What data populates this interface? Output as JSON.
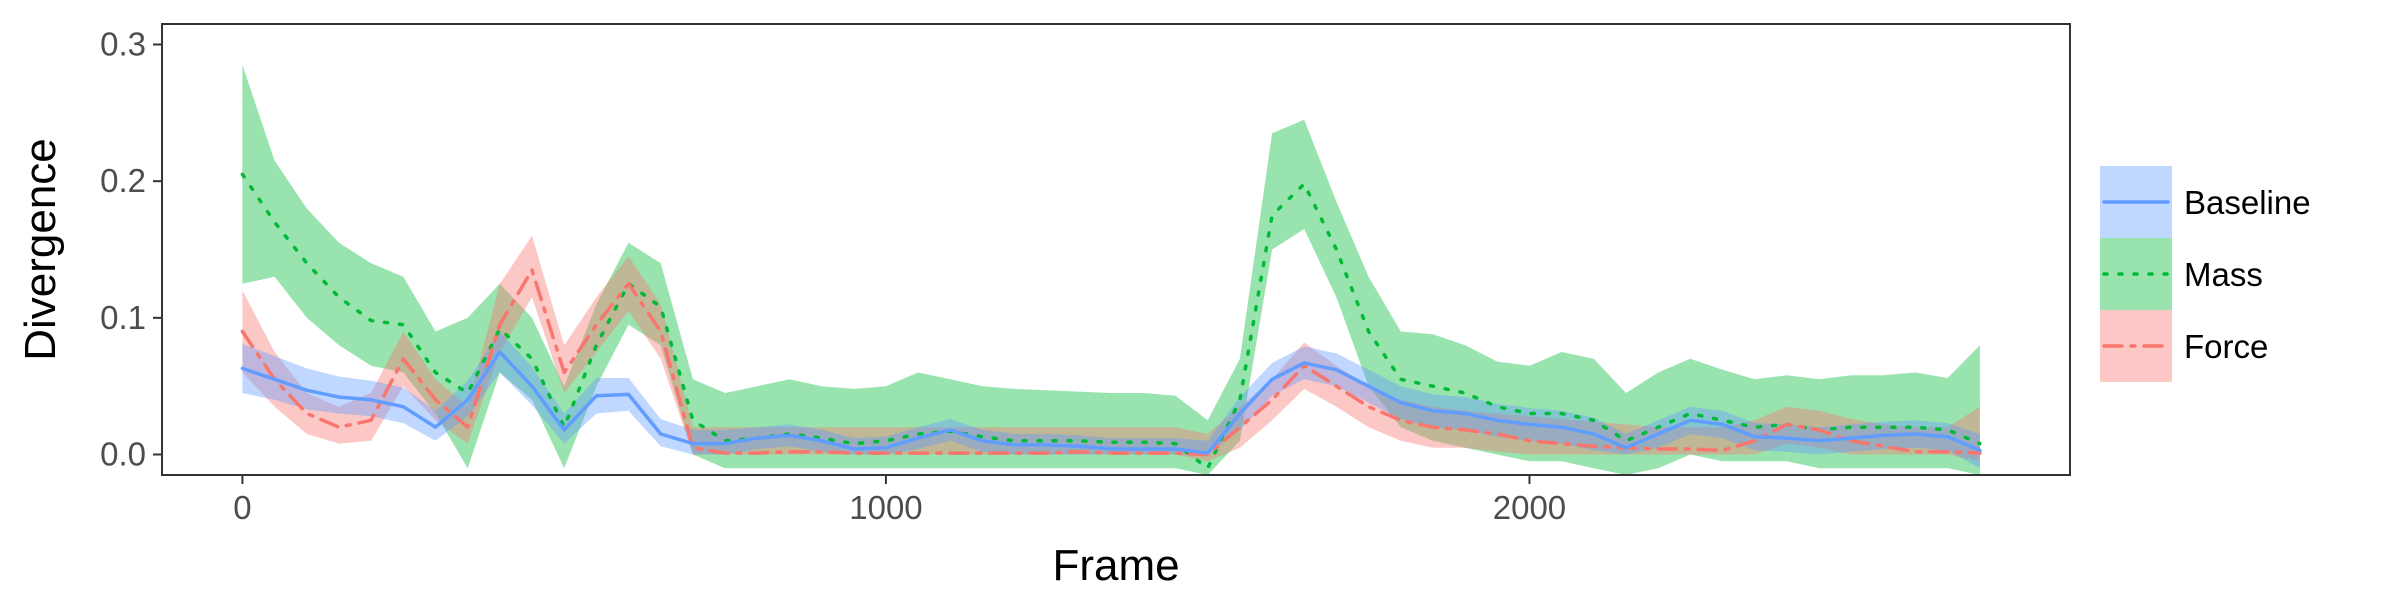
{
  "chart_data": {
    "type": "line",
    "title": "",
    "xlabel": "Frame",
    "ylabel": "Divergence",
    "xlim": [
      -125,
      2840
    ],
    "ylim": [
      -0.015,
      0.315
    ],
    "xticks": [
      0,
      1000,
      2000
    ],
    "xtick_labels": [
      "0",
      "1000",
      "2000"
    ],
    "yticks": [
      0.0,
      0.1,
      0.2,
      0.3
    ],
    "ytick_labels": [
      "0.0",
      "0.1",
      "0.2",
      "0.3"
    ],
    "grid": false,
    "legend_position": "right",
    "x": [
      0,
      50,
      100,
      150,
      200,
      250,
      300,
      350,
      400,
      450,
      500,
      550,
      600,
      650,
      700,
      750,
      800,
      850,
      900,
      950,
      1000,
      1050,
      1100,
      1150,
      1200,
      1250,
      1300,
      1350,
      1400,
      1450,
      1500,
      1550,
      1600,
      1650,
      1700,
      1750,
      1800,
      1850,
      1900,
      1950,
      2000,
      2050,
      2100,
      2150,
      2200,
      2250,
      2300,
      2350,
      2400,
      2450,
      2500,
      2550,
      2600,
      2650,
      2700
    ],
    "series": [
      {
        "name": "Baseline",
        "color": "#619CFF",
        "band_color": "#619CFF",
        "line_style": "solid",
        "values": [
          0.063,
          0.055,
          0.047,
          0.042,
          0.04,
          0.035,
          0.02,
          0.04,
          0.075,
          0.05,
          0.018,
          0.043,
          0.044,
          0.015,
          0.008,
          0.008,
          0.012,
          0.014,
          0.01,
          0.004,
          0.005,
          0.012,
          0.018,
          0.01,
          0.007,
          0.007,
          0.006,
          0.004,
          0.004,
          0.004,
          0.001,
          0.03,
          0.055,
          0.067,
          0.062,
          0.05,
          0.038,
          0.032,
          0.03,
          0.025,
          0.022,
          0.02,
          0.015,
          0.005,
          0.015,
          0.025,
          0.022,
          0.013,
          0.012,
          0.01,
          0.012,
          0.014,
          0.015,
          0.013,
          0.003
        ],
        "lower": [
          0.045,
          0.04,
          0.033,
          0.03,
          0.028,
          0.023,
          0.01,
          0.028,
          0.06,
          0.036,
          0.008,
          0.03,
          0.032,
          0.006,
          0.0,
          0.0,
          0.004,
          0.006,
          0.002,
          0.0,
          0.0,
          0.004,
          0.01,
          0.002,
          0.0,
          0.0,
          0.0,
          0.0,
          0.0,
          0.0,
          0.0,
          0.018,
          0.043,
          0.055,
          0.05,
          0.038,
          0.026,
          0.02,
          0.018,
          0.013,
          0.01,
          0.008,
          0.003,
          0.0,
          0.005,
          0.015,
          0.012,
          0.003,
          0.002,
          0.0,
          0.002,
          0.004,
          0.005,
          0.003,
          -0.01
        ],
        "upper": [
          0.081,
          0.072,
          0.063,
          0.057,
          0.054,
          0.049,
          0.032,
          0.054,
          0.09,
          0.064,
          0.03,
          0.056,
          0.056,
          0.026,
          0.018,
          0.018,
          0.02,
          0.022,
          0.018,
          0.012,
          0.013,
          0.02,
          0.026,
          0.018,
          0.015,
          0.015,
          0.014,
          0.012,
          0.012,
          0.012,
          0.01,
          0.042,
          0.067,
          0.079,
          0.074,
          0.062,
          0.05,
          0.044,
          0.042,
          0.037,
          0.034,
          0.032,
          0.027,
          0.015,
          0.025,
          0.035,
          0.032,
          0.023,
          0.022,
          0.02,
          0.022,
          0.024,
          0.025,
          0.023,
          0.015
        ]
      },
      {
        "name": "Mass",
        "color": "#00BA38",
        "band_color": "#00BA38",
        "line_style": "dotted",
        "values": [
          0.205,
          0.17,
          0.14,
          0.115,
          0.098,
          0.095,
          0.06,
          0.045,
          0.092,
          0.07,
          0.02,
          0.08,
          0.125,
          0.108,
          0.025,
          0.01,
          0.012,
          0.015,
          0.012,
          0.008,
          0.01,
          0.015,
          0.017,
          0.013,
          0.01,
          0.01,
          0.01,
          0.009,
          0.009,
          0.008,
          -0.01,
          0.04,
          0.175,
          0.198,
          0.15,
          0.09,
          0.055,
          0.05,
          0.045,
          0.035,
          0.03,
          0.03,
          0.025,
          0.01,
          0.02,
          0.03,
          0.025,
          0.02,
          0.022,
          0.018,
          0.02,
          0.02,
          0.02,
          0.018,
          0.008
        ],
        "lower": [
          0.125,
          0.13,
          0.1,
          0.08,
          0.065,
          0.06,
          0.03,
          -0.01,
          0.06,
          0.04,
          -0.01,
          0.05,
          0.095,
          0.08,
          0.0,
          -0.01,
          -0.01,
          -0.01,
          -0.01,
          -0.01,
          -0.01,
          -0.01,
          -0.01,
          -0.01,
          -0.01,
          -0.01,
          -0.01,
          -0.01,
          -0.01,
          -0.01,
          -0.015,
          0.01,
          0.15,
          0.165,
          0.115,
          0.05,
          0.02,
          0.01,
          0.005,
          0.0,
          -0.005,
          -0.005,
          -0.01,
          -0.015,
          -0.01,
          0.0,
          -0.005,
          -0.005,
          -0.005,
          -0.01,
          -0.01,
          -0.01,
          -0.01,
          -0.01,
          -0.015
        ],
        "upper": [
          0.285,
          0.215,
          0.18,
          0.155,
          0.14,
          0.13,
          0.09,
          0.1,
          0.125,
          0.1,
          0.05,
          0.11,
          0.155,
          0.14,
          0.055,
          0.045,
          0.05,
          0.055,
          0.05,
          0.048,
          0.05,
          0.06,
          0.055,
          0.05,
          0.048,
          0.047,
          0.046,
          0.045,
          0.045,
          0.043,
          0.025,
          0.07,
          0.235,
          0.245,
          0.185,
          0.13,
          0.09,
          0.088,
          0.08,
          0.068,
          0.065,
          0.075,
          0.07,
          0.045,
          0.06,
          0.07,
          0.062,
          0.055,
          0.058,
          0.055,
          0.058,
          0.058,
          0.06,
          0.056,
          0.08
        ]
      },
      {
        "name": "Force",
        "color": "#F8766D",
        "band_color": "#F8766D",
        "line_style": "dashdot",
        "values": [
          0.09,
          0.055,
          0.03,
          0.02,
          0.025,
          0.07,
          0.04,
          0.02,
          0.095,
          0.135,
          0.06,
          0.095,
          0.125,
          0.09,
          0.005,
          0.001,
          0.001,
          0.002,
          0.002,
          0.001,
          0.001,
          0.001,
          0.001,
          0.001,
          0.001,
          0.001,
          0.002,
          0.001,
          0.001,
          0.001,
          0.0,
          0.02,
          0.04,
          0.065,
          0.05,
          0.035,
          0.025,
          0.02,
          0.018,
          0.015,
          0.01,
          0.008,
          0.006,
          0.005,
          0.004,
          0.004,
          0.003,
          0.01,
          0.022,
          0.018,
          0.01,
          0.006,
          0.002,
          0.002,
          0.001
        ],
        "lower": [
          0.06,
          0.035,
          0.015,
          0.008,
          0.01,
          0.05,
          0.025,
          0.008,
          0.075,
          0.115,
          0.045,
          0.075,
          0.105,
          0.07,
          0.0,
          0.0,
          0.0,
          0.0,
          0.0,
          0.0,
          0.0,
          0.0,
          0.0,
          0.0,
          0.0,
          0.0,
          0.0,
          0.0,
          0.0,
          0.0,
          -0.005,
          0.005,
          0.025,
          0.048,
          0.035,
          0.02,
          0.01,
          0.005,
          0.005,
          0.002,
          0.0,
          0.0,
          0.0,
          0.0,
          0.0,
          0.0,
          0.0,
          0.0,
          0.008,
          0.005,
          0.0,
          0.0,
          0.0,
          0.0,
          -0.005
        ],
        "upper": [
          0.12,
          0.075,
          0.045,
          0.035,
          0.045,
          0.09,
          0.055,
          0.035,
          0.125,
          0.16,
          0.08,
          0.115,
          0.145,
          0.11,
          0.02,
          0.02,
          0.02,
          0.02,
          0.02,
          0.02,
          0.02,
          0.02,
          0.02,
          0.02,
          0.02,
          0.02,
          0.02,
          0.02,
          0.02,
          0.02,
          0.015,
          0.035,
          0.055,
          0.082,
          0.065,
          0.05,
          0.04,
          0.035,
          0.032,
          0.03,
          0.028,
          0.026,
          0.024,
          0.022,
          0.02,
          0.02,
          0.02,
          0.025,
          0.035,
          0.032,
          0.026,
          0.022,
          0.02,
          0.02,
          0.035
        ]
      }
    ],
    "legend": [
      "Baseline",
      "Mass",
      "Force"
    ]
  }
}
